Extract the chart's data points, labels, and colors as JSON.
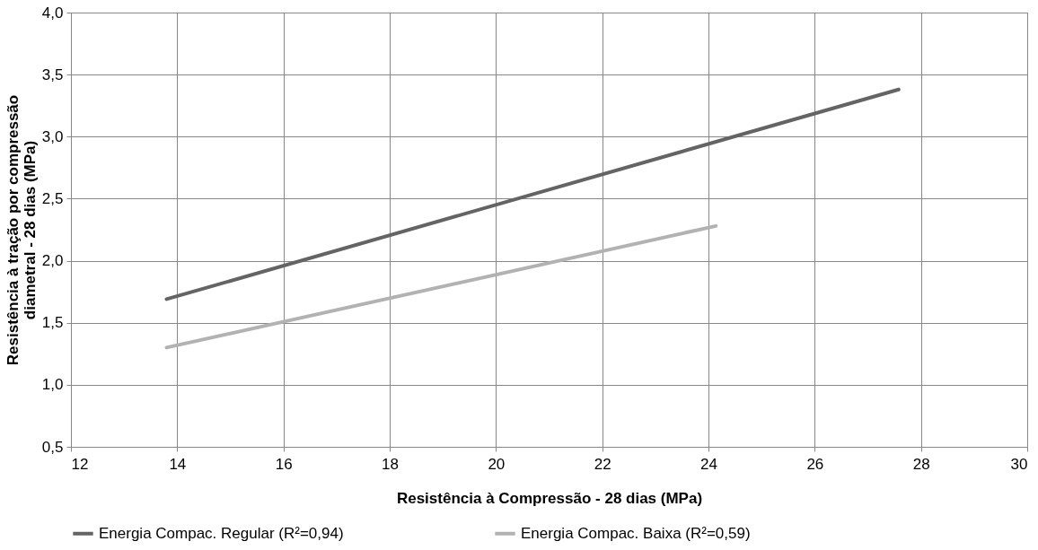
{
  "chart_data": {
    "type": "line",
    "xlabel": "Resistência à Compressão - 28 dias (MPa)",
    "ylabel": "Resistência à tração por compressão diametral - 28 dias (MPa)",
    "xlim": [
      12,
      30
    ],
    "xticks": [
      12,
      14,
      16,
      18,
      20,
      22,
      24,
      26,
      28,
      30
    ],
    "ylim": [
      0.5,
      4.0
    ],
    "yticks": [
      {
        "value": 0.5,
        "label": "0,5"
      },
      {
        "value": 1.0,
        "label": "1,0"
      },
      {
        "value": 1.5,
        "label": "1,5"
      },
      {
        "value": 2.0,
        "label": "2,0"
      },
      {
        "value": 2.5,
        "label": "2,5"
      },
      {
        "value": 3.0,
        "label": "3,0"
      },
      {
        "value": 3.5,
        "label": "3,5"
      },
      {
        "value": 4.0,
        "label": "4,0"
      }
    ],
    "grid": true,
    "legend": "bottom",
    "marker": "none",
    "line_style": "solid",
    "series": [
      {
        "name": "Energia Compac. Regular (R²=0,94)",
        "color": "#646464",
        "x": [
          13.8,
          27.58
        ],
        "values": [
          1.69,
          3.38
        ]
      },
      {
        "name": "Energia Compac. Baixa (R²=0,59)",
        "color": "#b2b2b2",
        "x": [
          13.8,
          24.14
        ],
        "values": [
          1.3,
          2.28
        ]
      }
    ]
  }
}
